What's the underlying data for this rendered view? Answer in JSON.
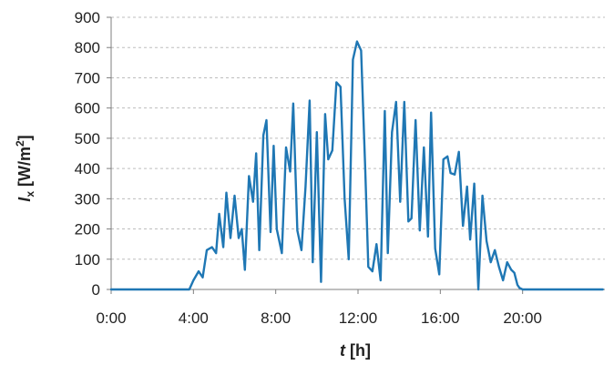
{
  "chart_data": {
    "type": "line",
    "title": "",
    "xlabel": {
      "italic": "t",
      "rest": " [h]"
    },
    "ylabel": {
      "italic": "I",
      "sub": "x",
      "rest": " [W/m",
      "sup": "2",
      "end": "]"
    },
    "xlim": [
      0,
      24
    ],
    "ylim": [
      0,
      900
    ],
    "x_ticks": [
      0,
      4,
      8,
      12,
      16,
      20
    ],
    "x_tick_labels": [
      "0:00",
      "4:00",
      "8:00",
      "12:00",
      "16:00",
      "20:00"
    ],
    "y_ticks": [
      0,
      100,
      200,
      300,
      400,
      500,
      600,
      700,
      800,
      900
    ],
    "y_tick_labels": [
      "0",
      "100",
      "200",
      "300",
      "400",
      "500",
      "600",
      "700",
      "800",
      "900"
    ],
    "grid": "horizontal",
    "legend": "none",
    "series": [
      {
        "color": "#1f77b4",
        "x": [
          0,
          3.8,
          4.0,
          4.25,
          4.45,
          4.65,
          4.9,
          5.1,
          5.25,
          5.45,
          5.6,
          5.8,
          6.0,
          6.2,
          6.35,
          6.5,
          6.7,
          6.9,
          7.05,
          7.2,
          7.4,
          7.55,
          7.75,
          7.9,
          8.05,
          8.3,
          8.5,
          8.7,
          8.85,
          9.05,
          9.25,
          9.45,
          9.65,
          9.8,
          10.0,
          10.2,
          10.4,
          10.55,
          10.75,
          10.95,
          11.15,
          11.35,
          11.55,
          11.75,
          11.95,
          12.15,
          12.35,
          12.5,
          12.7,
          12.9,
          13.1,
          13.3,
          13.45,
          13.65,
          13.85,
          14.05,
          14.25,
          14.45,
          14.6,
          14.8,
          15.0,
          15.2,
          15.4,
          15.55,
          15.75,
          15.95,
          16.15,
          16.35,
          16.5,
          16.7,
          16.9,
          17.1,
          17.3,
          17.45,
          17.65,
          17.85,
          18.05,
          18.25,
          18.45,
          18.65,
          18.85,
          19.05,
          19.25,
          19.45,
          19.6,
          19.75,
          19.85,
          20.0,
          23.9
        ],
        "values": [
          0,
          0,
          30,
          60,
          40,
          130,
          140,
          120,
          250,
          140,
          320,
          170,
          310,
          170,
          200,
          65,
          375,
          290,
          450,
          130,
          510,
          560,
          190,
          475,
          200,
          120,
          470,
          390,
          615,
          195,
          130,
          340,
          625,
          90,
          520,
          25,
          580,
          430,
          460,
          685,
          670,
          300,
          100,
          760,
          820,
          790,
          400,
          75,
          60,
          150,
          30,
          590,
          120,
          520,
          620,
          290,
          620,
          225,
          235,
          560,
          195,
          470,
          175,
          585,
          135,
          50,
          430,
          440,
          385,
          380,
          455,
          210,
          340,
          165,
          350,
          0,
          310,
          160,
          90,
          130,
          75,
          30,
          90,
          65,
          55,
          15,
          5,
          0,
          0
        ]
      }
    ]
  }
}
